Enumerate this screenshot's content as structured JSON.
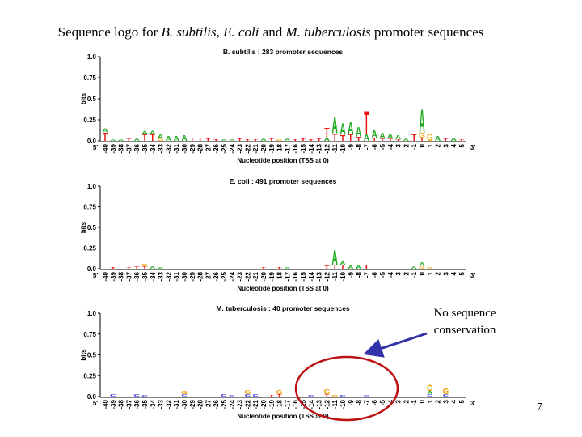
{
  "slide": {
    "title_pre": "Sequence logo for ",
    "title_org1": "B. subtilis",
    "title_sep1": ", ",
    "title_org2": "E. coli",
    "title_mid": " and ",
    "title_org3": "M. tuberculosis",
    "title_post": " promoter sequences",
    "annotation": "No sequence conservation",
    "page_number": "7"
  },
  "colors": {
    "A": "#22aa22",
    "C": "#2222dd",
    "G": "#f0a000",
    "T": "#ee1111",
    "arrow": "#3333aa",
    "ellipse": "#bb1111"
  },
  "icons": {
    "annotation_arrow": "arrow-icon",
    "highlight_ellipse": "ellipse-icon"
  },
  "chart_data": [
    {
      "type": "sequence-logo",
      "title": "B. subtilis : 283 promoter sequences",
      "ylabel": "bits",
      "xlabel": "Nucleotide position (TSS at 0)",
      "end_5": "5′",
      "end_3": "3′",
      "ylim": [
        0,
        1.0
      ],
      "yticks": [
        "0.0",
        "0.25",
        "0.5",
        "0.75",
        "1.0"
      ],
      "positions": [
        "-40",
        "-39",
        "-38",
        "-37",
        "-36",
        "-35",
        "-34",
        "-33",
        "-32",
        "-31",
        "-30",
        "-29",
        "-28",
        "-27",
        "-26",
        "-25",
        "-24",
        "-23",
        "-22",
        "-21",
        "-20",
        "-19",
        "-18",
        "-17",
        "-16",
        "-15",
        "-14",
        "-13",
        "-12",
        "-11",
        "-10",
        "-9",
        "-8",
        "-7",
        "-6",
        "-5",
        "-4",
        "-3",
        "-2",
        "-1",
        "0",
        "1",
        "2",
        "3",
        "4",
        "5"
      ],
      "stacks": {
        "-40": [
          [
            "T",
            0.1
          ],
          [
            "A",
            0.05
          ]
        ],
        "-39": [
          [
            "A",
            0.02
          ]
        ],
        "-38": [
          [
            "A",
            0.02
          ]
        ],
        "-37": [
          [
            "T",
            0.03
          ]
        ],
        "-36": [
          [
            "A",
            0.03
          ]
        ],
        "-35": [
          [
            "T",
            0.08
          ],
          [
            "A",
            0.04
          ]
        ],
        "-34": [
          [
            "T",
            0.08
          ],
          [
            "A",
            0.04
          ]
        ],
        "-33": [
          [
            "G",
            0.03
          ],
          [
            "A",
            0.05
          ]
        ],
        "-32": [
          [
            "A",
            0.06
          ]
        ],
        "-31": [
          [
            "A",
            0.06
          ]
        ],
        "-30": [
          [
            "A",
            0.07
          ]
        ],
        "-29": [
          [
            "T",
            0.04
          ]
        ],
        "-28": [
          [
            "T",
            0.04
          ]
        ],
        "-27": [
          [
            "T",
            0.03
          ]
        ],
        "-26": [
          [
            "T",
            0.02
          ]
        ],
        "-25": [
          [
            "A",
            0.02
          ]
        ],
        "-24": [
          [
            "A",
            0.02
          ]
        ],
        "-23": [
          [
            "T",
            0.03
          ]
        ],
        "-22": [
          [
            "T",
            0.02
          ]
        ],
        "-21": [
          [
            "T",
            0.02
          ]
        ],
        "-20": [
          [
            "A",
            0.03
          ]
        ],
        "-19": [
          [
            "T",
            0.03
          ]
        ],
        "-18": [
          [
            "G",
            0.02
          ]
        ],
        "-17": [
          [
            "A",
            0.03
          ]
        ],
        "-16": [
          [
            "T",
            0.02
          ]
        ],
        "-15": [
          [
            "T",
            0.03
          ]
        ],
        "-14": [
          [
            "T",
            0.02
          ]
        ],
        "-13": [
          [
            "T",
            0.03
          ]
        ],
        "-12": [
          [
            "A",
            0.04
          ],
          [
            "T",
            0.12
          ]
        ],
        "-11": [
          [
            "T",
            0.09
          ],
          [
            "A",
            0.2
          ]
        ],
        "-10": [
          [
            "T",
            0.07
          ],
          [
            "A",
            0.14
          ]
        ],
        "-9": [
          [
            "T",
            0.08
          ],
          [
            "A",
            0.15
          ]
        ],
        "-8": [
          [
            "T",
            0.05
          ],
          [
            "A",
            0.12
          ]
        ],
        "-7": [
          [
            "A",
            0.08
          ],
          [
            "T",
            0.28
          ]
        ],
        "-6": [
          [
            "T",
            0.04
          ],
          [
            "A",
            0.09
          ]
        ],
        "-5": [
          [
            "T",
            0.03
          ],
          [
            "A",
            0.07
          ]
        ],
        "-4": [
          [
            "T",
            0.03
          ],
          [
            "A",
            0.06
          ]
        ],
        "-3": [
          [
            "T",
            0.02
          ],
          [
            "A",
            0.05
          ]
        ],
        "-2": [
          [
            "A",
            0.03
          ]
        ],
        "-1": [
          [
            "T",
            0.08
          ]
        ],
        "0": [
          [
            "T",
            0.04
          ],
          [
            "G",
            0.06
          ],
          [
            "A",
            0.28
          ]
        ],
        "1": [
          [
            "G",
            0.09
          ]
        ],
        "2": [
          [
            "A",
            0.06
          ]
        ],
        "3": [
          [
            "T",
            0.03
          ]
        ],
        "4": [
          [
            "A",
            0.04
          ]
        ],
        "5": [
          [
            "T",
            0.02
          ]
        ]
      }
    },
    {
      "type": "sequence-logo",
      "title": "E. coli : 491 promoter sequences",
      "ylabel": "bits",
      "xlabel": "Nucleotide position (TSS at 0)",
      "end_5": "5′",
      "end_3": "3′",
      "ylim": [
        0,
        1.0
      ],
      "yticks": [
        "0.0",
        "0.25",
        "0.5",
        "0.75",
        "1.0"
      ],
      "positions": [
        "-40",
        "-39",
        "-38",
        "-37",
        "-36",
        "-35",
        "-34",
        "-33",
        "-32",
        "-31",
        "-30",
        "-29",
        "-28",
        "-27",
        "-26",
        "-25",
        "-24",
        "-23",
        "-22",
        "-21",
        "-20",
        "-19",
        "-18",
        "-17",
        "-16",
        "-15",
        "-14",
        "-13",
        "-12",
        "-11",
        "-10",
        "-9",
        "-8",
        "-7",
        "-6",
        "-5",
        "-4",
        "-3",
        "-2",
        "-1",
        "0",
        "1",
        "2",
        "3",
        "4",
        "5"
      ],
      "stacks": {
        "-39": [
          [
            "T",
            0.02
          ]
        ],
        "-37": [
          [
            "T",
            0.02
          ]
        ],
        "-36": [
          [
            "T",
            0.03
          ]
        ],
        "-35": [
          [
            "T",
            0.03
          ],
          [
            "G",
            0.03
          ]
        ],
        "-34": [
          [
            "A",
            0.03
          ]
        ],
        "-33": [
          [
            "A",
            0.02
          ]
        ],
        "-20": [
          [
            "T",
            0.02
          ]
        ],
        "-18": [
          [
            "T",
            0.02
          ]
        ],
        "-17": [
          [
            "A",
            0.02
          ]
        ],
        "-12": [
          [
            "T",
            0.04
          ]
        ],
        "-11": [
          [
            "T",
            0.05
          ],
          [
            "A",
            0.18
          ]
        ],
        "-10": [
          [
            "T",
            0.05
          ],
          [
            "A",
            0.04
          ]
        ],
        "-9": [
          [
            "A",
            0.04
          ]
        ],
        "-8": [
          [
            "A",
            0.04
          ]
        ],
        "-7": [
          [
            "T",
            0.05
          ]
        ],
        "-1": [
          [
            "A",
            0.03
          ]
        ],
        "0": [
          [
            "G",
            0.03
          ],
          [
            "A",
            0.05
          ]
        ],
        "1": [
          [
            "G",
            0.02
          ]
        ]
      }
    },
    {
      "type": "sequence-logo",
      "title": "M. tuberculosis : 40 promoter sequences",
      "ylabel": "bits",
      "xlabel": "Nucleotide position (TSS at 0)",
      "end_5": "5′",
      "end_3": "3′",
      "ylim": [
        0,
        1.0
      ],
      "yticks": [
        "0.0",
        "0.25",
        "0.5",
        "0.75",
        "1.0"
      ],
      "positions": [
        "-40",
        "-39",
        "-38",
        "-37",
        "-36",
        "-35",
        "-34",
        "-33",
        "-32",
        "-31",
        "-30",
        "-29",
        "-28",
        "-27",
        "-26",
        "-25",
        "-24",
        "-23",
        "-22",
        "-21",
        "-20",
        "-19",
        "-18",
        "-17",
        "-16",
        "-15",
        "-14",
        "-13",
        "-12",
        "-11",
        "-10",
        "-9",
        "-8",
        "-7",
        "-6",
        "-5",
        "-4",
        "-3",
        "-2",
        "-1",
        "0",
        "1",
        "2",
        "3",
        "4",
        "5"
      ],
      "stacks": {
        "-39": [
          [
            "C",
            0.03
          ]
        ],
        "-36": [
          [
            "C",
            0.03
          ]
        ],
        "-35": [
          [
            "C",
            0.02
          ]
        ],
        "-30": [
          [
            "C",
            0.03
          ],
          [
            "G",
            0.04
          ]
        ],
        "-25": [
          [
            "C",
            0.03
          ]
        ],
        "-24": [
          [
            "C",
            0.02
          ]
        ],
        "-22": [
          [
            "C",
            0.03
          ],
          [
            "G",
            0.05
          ]
        ],
        "-21": [
          [
            "C",
            0.03
          ]
        ],
        "-19": [
          [
            "T",
            0.02
          ]
        ],
        "-18": [
          [
            "T",
            0.03
          ],
          [
            "G",
            0.05
          ]
        ],
        "-14": [
          [
            "C",
            0.02
          ]
        ],
        "-12": [
          [
            "T",
            0.03
          ],
          [
            "G",
            0.06
          ]
        ],
        "-11": [
          [
            "G",
            0.02
          ]
        ],
        "-10": [
          [
            "C",
            0.02
          ]
        ],
        "-7": [
          [
            "C",
            0.02
          ]
        ],
        "1": [
          [
            "C",
            0.03
          ],
          [
            "A",
            0.04
          ],
          [
            "G",
            0.08
          ]
        ],
        "3": [
          [
            "C",
            0.03
          ],
          [
            "G",
            0.07
          ]
        ]
      }
    }
  ]
}
